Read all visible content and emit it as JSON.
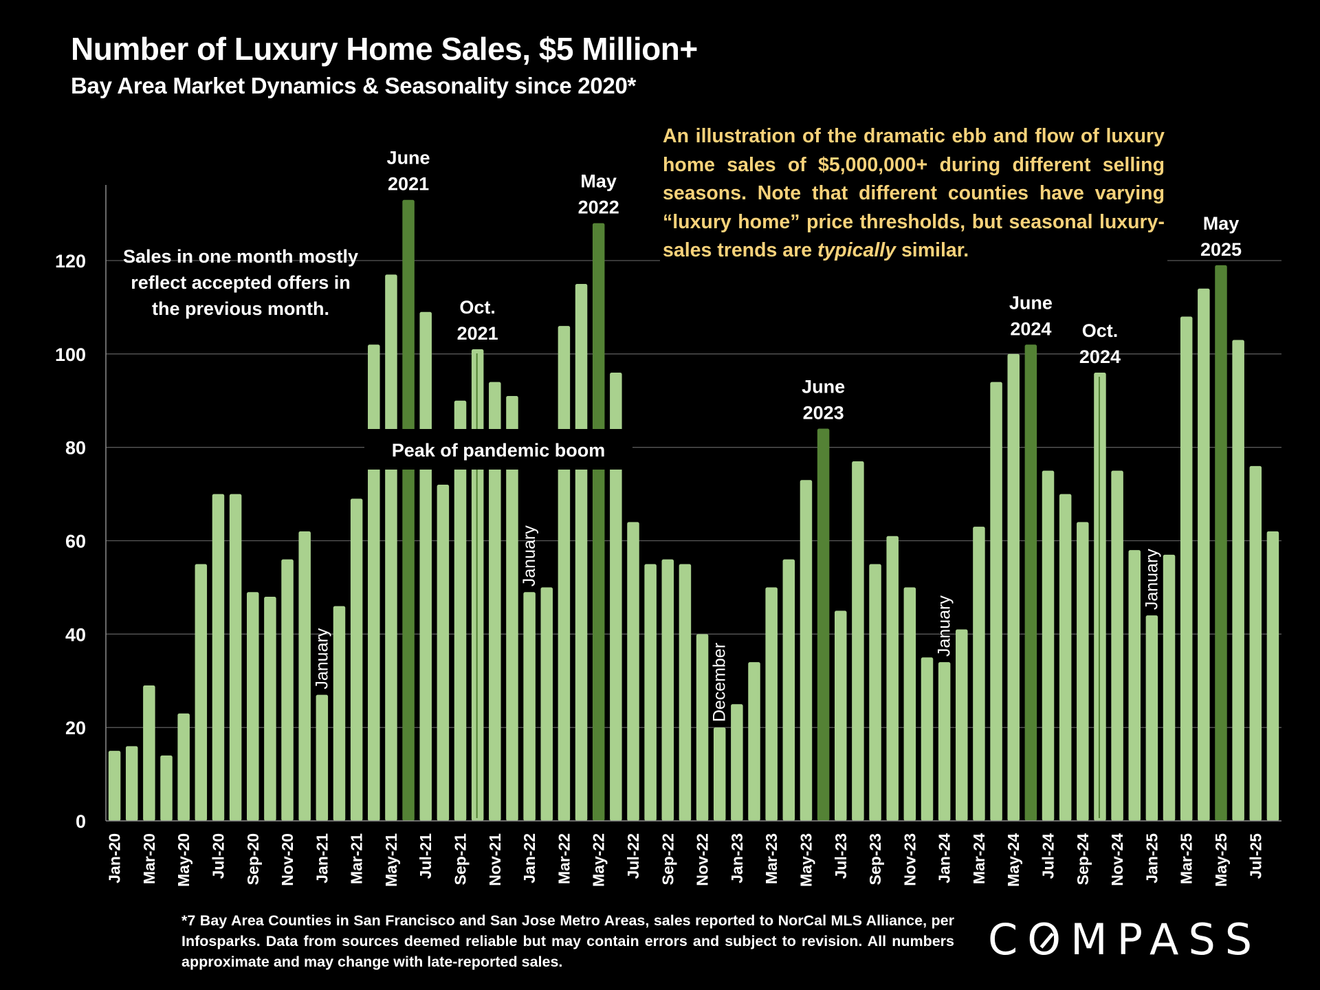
{
  "header": {
    "title": "Number of Luxury Home Sales, $5 Million+",
    "subtitle": "Bay Area Market Dynamics & Seasonality since 2020*"
  },
  "annotations": {
    "yellow_note_parts": [
      "An illustration of the dramatic  ebb and flow of luxury home sales of $5,000,000+ during different selling seasons. Note that different counties have varying “luxury home” price thresholds, but seasonal luxury-sales trends are ",
      "typically",
      " similar."
    ],
    "white_note": "Sales in one month mostly reflect accepted offers in the previous month.",
    "band_label": "Peak of pandemic boom",
    "peak_labels": [
      {
        "index": 17,
        "line1": "June",
        "line2": "2021"
      },
      {
        "index": 21,
        "line1": "Oct.",
        "line2": "2021"
      },
      {
        "index": 28,
        "line1": "May",
        "line2": "2022"
      },
      {
        "index": 41,
        "line1": "June",
        "line2": "2023"
      },
      {
        "index": 53,
        "line1": "June",
        "line2": "2024"
      },
      {
        "index": 57,
        "line1": "Oct.",
        "line2": "2024"
      },
      {
        "index": 64,
        "line1": "May",
        "line2": "2025"
      }
    ],
    "vertical_labels": [
      {
        "index": 12,
        "text": "January"
      },
      {
        "index": 24,
        "text": "January"
      },
      {
        "index": 35,
        "text": "December"
      },
      {
        "index": 48,
        "text": "January"
      },
      {
        "index": 60,
        "text": "January"
      }
    ]
  },
  "footnote": "*7 Bay Area Counties in San Francisco and San Jose Metro Areas, sales reported to NorCal MLS Alliance, per Infosparks.  Data from sources deemed reliable but may contain errors and subject to revision. All numbers approximate and may change with late-reported sales.",
  "logo": {
    "text_before": "C",
    "text_o": "O",
    "text_after": "MPASS"
  },
  "colors": {
    "bar": "#a9d18e",
    "highlight": "#548235",
    "note": "#f7d27a",
    "grid": "#595959"
  },
  "chart_data": {
    "type": "bar",
    "title": "Number of Luxury Home Sales, $5 Million+",
    "subtitle": "Bay Area Market Dynamics & Seasonality since 2020*",
    "xlabel": "",
    "ylabel": "",
    "ylim": [
      0,
      135
    ],
    "yticks": [
      0,
      20,
      40,
      60,
      80,
      100,
      120
    ],
    "grid": true,
    "legend": "none",
    "categories": [
      "Jan-20",
      "Feb-20",
      "Mar-20",
      "Apr-20",
      "May-20",
      "Jun-20",
      "Jul-20",
      "Aug-20",
      "Sep-20",
      "Oct-20",
      "Nov-20",
      "Dec-20",
      "Jan-21",
      "Feb-21",
      "Mar-21",
      "Apr-21",
      "May-21",
      "Jun-21",
      "Jul-21",
      "Aug-21",
      "Sep-21",
      "Oct-21",
      "Nov-21",
      "Dec-21",
      "Jan-22",
      "Feb-22",
      "Mar-22",
      "Apr-22",
      "May-22",
      "Jun-22",
      "Jul-22",
      "Aug-22",
      "Sep-22",
      "Oct-22",
      "Nov-22",
      "Dec-22",
      "Jan-23",
      "Feb-23",
      "Mar-23",
      "Apr-23",
      "May-23",
      "Jun-23",
      "Jul-23",
      "Aug-23",
      "Sep-23",
      "Oct-23",
      "Nov-23",
      "Dec-23",
      "Jan-24",
      "Feb-24",
      "Mar-24",
      "Apr-24",
      "May-24",
      "Jun-24",
      "Jul-24",
      "Aug-24",
      "Sep-24",
      "Oct-24",
      "Nov-24",
      "Dec-24",
      "Jan-25",
      "Feb-25",
      "Mar-25",
      "Apr-25",
      "May-25",
      "Jun-25",
      "Jul-25",
      "Aug-25"
    ],
    "values": [
      15,
      16,
      29,
      14,
      23,
      55,
      70,
      70,
      49,
      48,
      56,
      62,
      27,
      46,
      69,
      102,
      117,
      133,
      109,
      72,
      90,
      101,
      94,
      91,
      49,
      50,
      106,
      115,
      128,
      96,
      64,
      55,
      56,
      55,
      40,
      20,
      25,
      34,
      50,
      56,
      73,
      84,
      45,
      77,
      55,
      61,
      50,
      35,
      34,
      41,
      63,
      94,
      100,
      102,
      75,
      70,
      64,
      96,
      75,
      58,
      44,
      57,
      108,
      114,
      119,
      103,
      76,
      62
    ],
    "highlighted": [
      "Jun-21",
      "May-22",
      "Jun-23",
      "Jun-24",
      "May-25"
    ],
    "outlined": [
      "Oct-21",
      "Oct-24"
    ],
    "tick_labels_shown_every": 2
  }
}
